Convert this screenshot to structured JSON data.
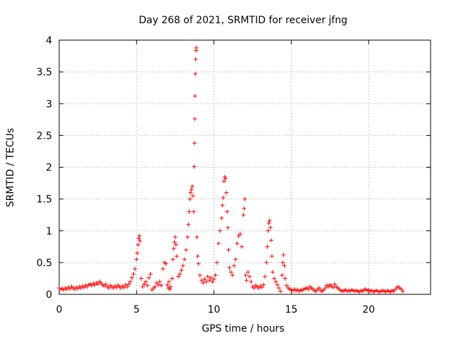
{
  "chart_data": {
    "type": "scatter",
    "title": "Day 268 of 2021, SRMTID for receiver jfng",
    "xlabel": "GPS time / hours",
    "ylabel": "SRMTID / TECUs",
    "xlim": [
      0,
      24
    ],
    "ylim": [
      0,
      4
    ],
    "xticks": [
      0,
      5,
      10,
      15,
      20
    ],
    "xtick_labels": [
      "0",
      "5",
      "10",
      "15",
      "20"
    ],
    "yticks": [
      0,
      0.5,
      1,
      1.5,
      2,
      2.5,
      3,
      3.5,
      4
    ],
    "ytick_labels": [
      "0",
      "0.5",
      "1",
      "1.5",
      "2",
      "2.5",
      "3",
      "3.5",
      "4"
    ],
    "grid": true,
    "marker": "+",
    "color": "#ff0000",
    "series": [
      {
        "name": "SRMTID",
        "points": [
          [
            0.0,
            0.1
          ],
          [
            0.1,
            0.08
          ],
          [
            0.2,
            0.09
          ],
          [
            0.3,
            0.07
          ],
          [
            0.4,
            0.1
          ],
          [
            0.5,
            0.08
          ],
          [
            0.6,
            0.11
          ],
          [
            0.7,
            0.09
          ],
          [
            0.8,
            0.12
          ],
          [
            0.9,
            0.1
          ],
          [
            1.0,
            0.08
          ],
          [
            1.1,
            0.11
          ],
          [
            1.2,
            0.09
          ],
          [
            1.3,
            0.12
          ],
          [
            1.4,
            0.1
          ],
          [
            1.5,
            0.13
          ],
          [
            1.6,
            0.11
          ],
          [
            1.7,
            0.14
          ],
          [
            1.8,
            0.12
          ],
          [
            1.9,
            0.15
          ],
          [
            2.0,
            0.16
          ],
          [
            2.1,
            0.14
          ],
          [
            2.2,
            0.17
          ],
          [
            2.3,
            0.15
          ],
          [
            2.4,
            0.18
          ],
          [
            2.5,
            0.16
          ],
          [
            2.6,
            0.2
          ],
          [
            2.7,
            0.18
          ],
          [
            2.8,
            0.15
          ],
          [
            2.9,
            0.13
          ],
          [
            3.0,
            0.16
          ],
          [
            3.1,
            0.12
          ],
          [
            3.2,
            0.1
          ],
          [
            3.3,
            0.14
          ],
          [
            3.4,
            0.12
          ],
          [
            3.5,
            0.1
          ],
          [
            3.6,
            0.13
          ],
          [
            3.7,
            0.11
          ],
          [
            3.8,
            0.14
          ],
          [
            3.9,
            0.12
          ],
          [
            4.0,
            0.1
          ],
          [
            4.1,
            0.13
          ],
          [
            4.2,
            0.11
          ],
          [
            4.3,
            0.15
          ],
          [
            4.4,
            0.12
          ],
          [
            4.5,
            0.16
          ],
          [
            4.6,
            0.2
          ],
          [
            4.7,
            0.26
          ],
          [
            4.8,
            0.32
          ],
          [
            4.9,
            0.4
          ],
          [
            5.0,
            0.55
          ],
          [
            5.05,
            0.65
          ],
          [
            5.1,
            0.78
          ],
          [
            5.15,
            0.88
          ],
          [
            5.18,
            0.92
          ],
          [
            5.22,
            0.84
          ],
          [
            5.3,
            0.25
          ],
          [
            5.4,
            0.12
          ],
          [
            5.5,
            0.16
          ],
          [
            5.6,
            0.2
          ],
          [
            5.7,
            0.14
          ],
          [
            5.8,
            0.26
          ],
          [
            5.9,
            0.32
          ],
          [
            6.0,
            0.07
          ],
          [
            6.1,
            0.1
          ],
          [
            6.2,
            0.12
          ],
          [
            6.3,
            0.18
          ],
          [
            6.4,
            0.15
          ],
          [
            6.5,
            0.2
          ],
          [
            6.6,
            0.14
          ],
          [
            6.7,
            0.4
          ],
          [
            6.8,
            0.5
          ],
          [
            6.9,
            0.48
          ],
          [
            7.0,
            0.15
          ],
          [
            7.05,
            0.1
          ],
          [
            7.1,
            0.2
          ],
          [
            7.15,
            0.08
          ],
          [
            7.2,
            0.12
          ],
          [
            7.3,
            0.25
          ],
          [
            7.35,
            0.55
          ],
          [
            7.4,
            0.72
          ],
          [
            7.45,
            0.82
          ],
          [
            7.5,
            0.9
          ],
          [
            7.55,
            0.78
          ],
          [
            7.6,
            0.6
          ],
          [
            7.7,
            0.28
          ],
          [
            7.8,
            0.32
          ],
          [
            7.9,
            0.38
          ],
          [
            8.0,
            0.45
          ],
          [
            8.1,
            0.55
          ],
          [
            8.2,
            0.7
          ],
          [
            8.3,
            0.9
          ],
          [
            8.35,
            1.1
          ],
          [
            8.4,
            1.3
          ],
          [
            8.45,
            1.5
          ],
          [
            8.5,
            1.6
          ],
          [
            8.55,
            1.65
          ],
          [
            8.6,
            1.7
          ],
          [
            8.65,
            1.55
          ],
          [
            8.7,
            1.3
          ],
          [
            8.72,
            2.01
          ],
          [
            8.74,
            2.38
          ],
          [
            8.76,
            2.76
          ],
          [
            8.78,
            3.12
          ],
          [
            8.8,
            3.47
          ],
          [
            8.82,
            3.7
          ],
          [
            8.84,
            3.84
          ],
          [
            8.86,
            3.88
          ],
          [
            8.9,
            0.9
          ],
          [
            8.95,
            0.6
          ],
          [
            9.0,
            0.48
          ],
          [
            9.1,
            0.3
          ],
          [
            9.2,
            0.22
          ],
          [
            9.3,
            0.18
          ],
          [
            9.4,
            0.24
          ],
          [
            9.5,
            0.2
          ],
          [
            9.6,
            0.28
          ],
          [
            9.7,
            0.22
          ],
          [
            9.8,
            0.26
          ],
          [
            9.9,
            0.2
          ],
          [
            10.0,
            0.24
          ],
          [
            10.1,
            0.3
          ],
          [
            10.2,
            0.5
          ],
          [
            10.3,
            0.8
          ],
          [
            10.4,
            1.0
          ],
          [
            10.5,
            1.2
          ],
          [
            10.55,
            1.4
          ],
          [
            10.6,
            1.52
          ],
          [
            10.65,
            1.78
          ],
          [
            10.7,
            1.85
          ],
          [
            10.75,
            1.82
          ],
          [
            10.8,
            1.6
          ],
          [
            10.85,
            1.3
          ],
          [
            10.9,
            1.05
          ],
          [
            10.95,
            0.7
          ],
          [
            11.0,
            0.42
          ],
          [
            11.1,
            0.35
          ],
          [
            11.2,
            0.3
          ],
          [
            11.3,
            0.45
          ],
          [
            11.4,
            0.55
          ],
          [
            11.5,
            0.8
          ],
          [
            11.6,
            0.92
          ],
          [
            11.7,
            0.95
          ],
          [
            11.8,
            0.75
          ],
          [
            11.9,
            1.25
          ],
          [
            11.95,
            1.35
          ],
          [
            12.0,
            1.5
          ],
          [
            12.05,
            0.3
          ],
          [
            12.1,
            0.22
          ],
          [
            12.2,
            0.35
          ],
          [
            12.3,
            0.28
          ],
          [
            12.4,
            0.2
          ],
          [
            12.5,
            0.12
          ],
          [
            12.6,
            0.1
          ],
          [
            12.7,
            0.14
          ],
          [
            12.8,
            0.12
          ],
          [
            12.9,
            0.1
          ],
          [
            13.0,
            0.13
          ],
          [
            13.1,
            0.11
          ],
          [
            13.2,
            0.15
          ],
          [
            13.3,
            0.28
          ],
          [
            13.4,
            0.5
          ],
          [
            13.45,
            0.75
          ],
          [
            13.5,
            1.0
          ],
          [
            13.55,
            1.12
          ],
          [
            13.6,
            1.16
          ],
          [
            13.65,
            1.05
          ],
          [
            13.7,
            0.85
          ],
          [
            13.75,
            0.6
          ],
          [
            13.8,
            0.35
          ],
          [
            13.9,
            0.25
          ],
          [
            14.0,
            0.2
          ],
          [
            14.1,
            0.15
          ],
          [
            14.2,
            0.1
          ],
          [
            14.3,
            0.05
          ],
          [
            14.4,
            0.3
          ],
          [
            14.45,
            0.5
          ],
          [
            14.5,
            0.62
          ],
          [
            14.55,
            0.45
          ],
          [
            14.6,
            0.25
          ],
          [
            14.7,
            0.14
          ],
          [
            14.8,
            0.1
          ],
          [
            14.9,
            0.08
          ],
          [
            15.0,
            0.07
          ],
          [
            15.1,
            0.06
          ],
          [
            15.2,
            0.08
          ],
          [
            15.3,
            0.06
          ],
          [
            15.4,
            0.07
          ],
          [
            15.5,
            0.05
          ],
          [
            15.6,
            0.07
          ],
          [
            15.7,
            0.06
          ],
          [
            15.8,
            0.08
          ],
          [
            15.9,
            0.09
          ],
          [
            16.0,
            0.1
          ],
          [
            16.1,
            0.08
          ],
          [
            16.2,
            0.12
          ],
          [
            16.3,
            0.1
          ],
          [
            16.4,
            0.08
          ],
          [
            16.5,
            0.06
          ],
          [
            16.6,
            0.05
          ],
          [
            16.7,
            0.08
          ],
          [
            16.8,
            0.1
          ],
          [
            16.9,
            0.06
          ],
          [
            17.0,
            0.05
          ],
          [
            17.1,
            0.07
          ],
          [
            17.2,
            0.1
          ],
          [
            17.3,
            0.14
          ],
          [
            17.4,
            0.12
          ],
          [
            17.5,
            0.15
          ],
          [
            17.6,
            0.13
          ],
          [
            17.7,
            0.11
          ],
          [
            17.8,
            0.16
          ],
          [
            17.9,
            0.12
          ],
          [
            18.0,
            0.1
          ],
          [
            18.1,
            0.08
          ],
          [
            18.2,
            0.06
          ],
          [
            18.3,
            0.05
          ],
          [
            18.4,
            0.06
          ],
          [
            18.5,
            0.07
          ],
          [
            18.6,
            0.05
          ],
          [
            18.7,
            0.06
          ],
          [
            18.8,
            0.05
          ],
          [
            18.9,
            0.07
          ],
          [
            19.0,
            0.06
          ],
          [
            19.1,
            0.05
          ],
          [
            19.2,
            0.06
          ],
          [
            19.3,
            0.05
          ],
          [
            19.4,
            0.04
          ],
          [
            19.5,
            0.06
          ],
          [
            19.6,
            0.05
          ],
          [
            19.7,
            0.07
          ],
          [
            19.8,
            0.08
          ],
          [
            19.9,
            0.06
          ],
          [
            20.0,
            0.07
          ],
          [
            20.1,
            0.05
          ],
          [
            20.2,
            0.06
          ],
          [
            20.3,
            0.04
          ],
          [
            20.4,
            0.05
          ],
          [
            20.5,
            0.06
          ],
          [
            20.6,
            0.05
          ],
          [
            20.7,
            0.04
          ],
          [
            20.8,
            0.05
          ],
          [
            20.9,
            0.06
          ],
          [
            21.0,
            0.05
          ],
          [
            21.1,
            0.04
          ],
          [
            21.2,
            0.06
          ],
          [
            21.3,
            0.05
          ],
          [
            21.4,
            0.04
          ],
          [
            21.5,
            0.06
          ],
          [
            21.6,
            0.05
          ],
          [
            21.7,
            0.07
          ],
          [
            21.8,
            0.1
          ],
          [
            21.9,
            0.12
          ],
          [
            22.0,
            0.1
          ],
          [
            22.1,
            0.08
          ],
          [
            22.2,
            0.05
          ]
        ]
      }
    ]
  }
}
